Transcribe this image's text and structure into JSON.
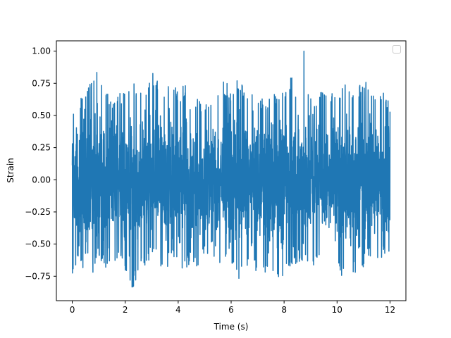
{
  "chart_data": {
    "type": "line",
    "title": "",
    "xlabel": "Time (s)",
    "ylabel": "Strain",
    "xlim": [
      -0.6,
      12.6
    ],
    "ylim": [
      -0.94,
      1.08
    ],
    "x_ticks": [
      0,
      2,
      4,
      6,
      8,
      10,
      12
    ],
    "x_tick_labels": [
      "0",
      "2",
      "4",
      "6",
      "8",
      "10",
      "12"
    ],
    "y_ticks": [
      -0.75,
      -0.5,
      -0.25,
      0.0,
      0.25,
      0.5,
      0.75,
      1.0
    ],
    "y_tick_labels": [
      "−0.75",
      "−0.50",
      "−0.25",
      "0.00",
      "0.25",
      "0.50",
      "0.75",
      "1.00"
    ],
    "grid": false,
    "legend": {
      "placement": "top-right",
      "entries": []
    },
    "series": [
      {
        "color": "#1f77b4",
        "x_range": [
          0,
          12
        ],
        "band_high": [
          0.54,
          0.68,
          0.75,
          0.83,
          0.85,
          0.72,
          0.63,
          0.71,
          0.67,
          0.8,
          0.72,
          0.63,
          0.89,
          0.76,
          0.74,
          0.73,
          0.72,
          0.76,
          0.7,
          0.63,
          0.59,
          0.68,
          0.71,
          0.77,
          0.72,
          0.78,
          0.73,
          0.7,
          0.71,
          0.6,
          0.66,
          0.67,
          0.73,
          0.81,
          0.72,
          0.85,
          0.64,
          0.66,
          0.72,
          0.71,
          0.69,
          0.78,
          0.76,
          0.72,
          0.83,
          0.65,
          0.67,
          0.74,
          0.57
        ],
        "band_low": [
          -0.73,
          -0.6,
          -0.85,
          -0.81,
          -0.58,
          -0.72,
          -0.65,
          -0.61,
          -0.77,
          -0.9,
          -0.72,
          -0.67,
          -0.59,
          -0.64,
          -0.72,
          -0.61,
          -0.7,
          -0.73,
          -0.62,
          -0.69,
          -0.57,
          -0.63,
          -0.75,
          -0.6,
          -0.63,
          -0.8,
          -0.72,
          -0.7,
          -0.72,
          -0.73,
          -0.78,
          -0.85,
          -0.72,
          -0.7,
          -0.64,
          -0.63,
          -0.7,
          -0.65,
          -0.62,
          -0.57,
          -0.74,
          -0.82,
          -0.72,
          -0.75,
          -0.68,
          -0.6,
          -0.62,
          -0.6,
          -0.58
        ],
        "peak": {
          "x": 8.75,
          "y": 1.0
        }
      }
    ]
  }
}
